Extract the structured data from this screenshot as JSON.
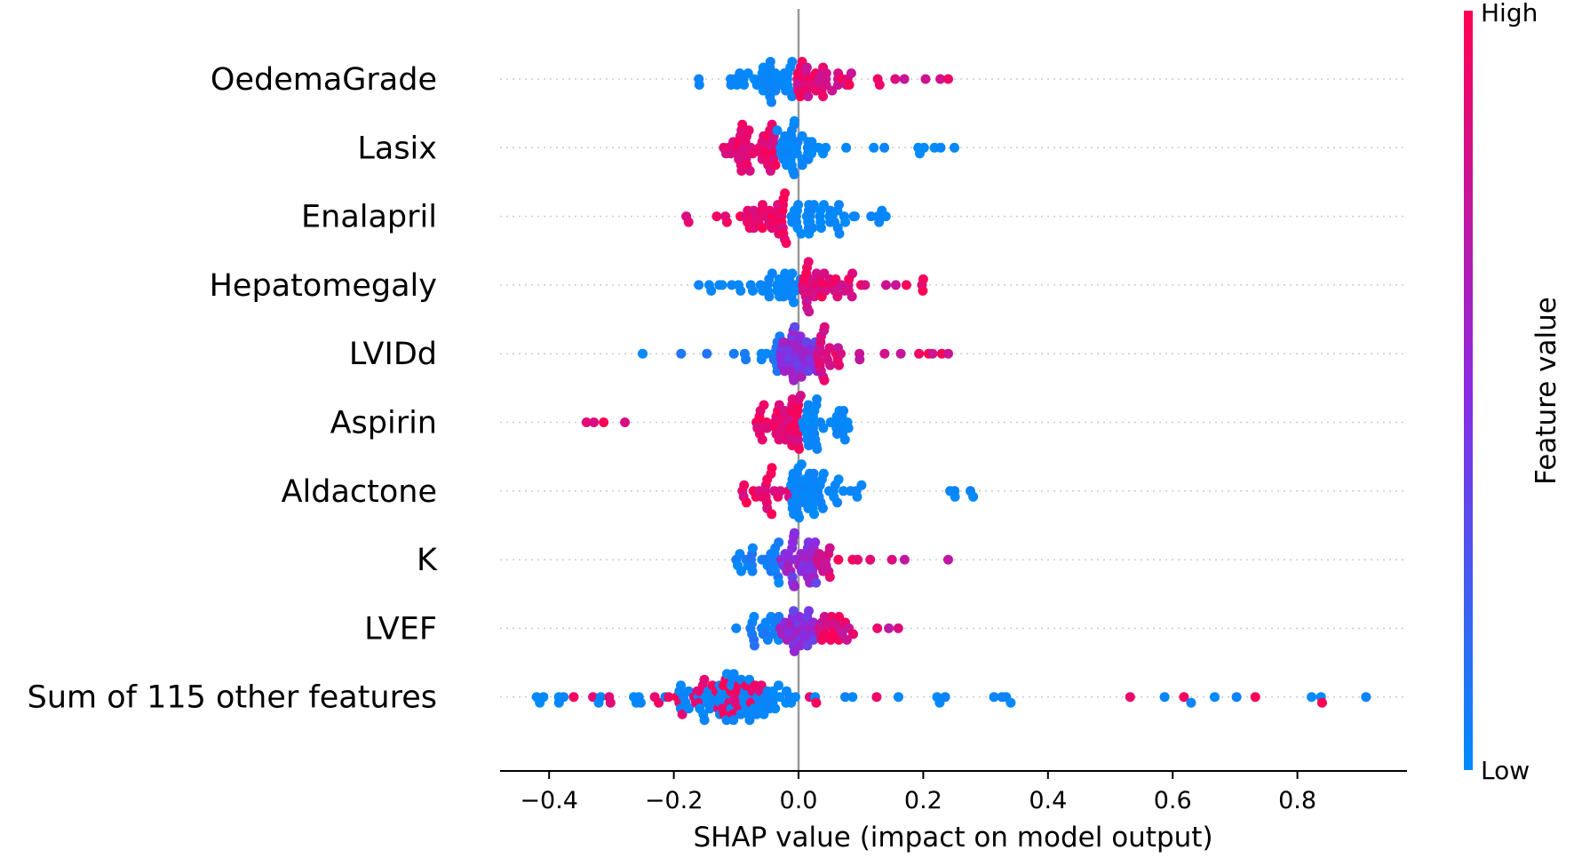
{
  "chart_data": {
    "type": "scatter",
    "subtype": "shap-beeswarm",
    "title": "",
    "xlabel": "SHAP value (impact on model output)",
    "ylabel": "",
    "xlim": [
      -0.48,
      0.97
    ],
    "xticks": [
      -0.4,
      -0.2,
      0.0,
      0.2,
      0.4,
      0.6,
      0.8
    ],
    "xtick_labels": [
      "−0.4",
      "−0.2",
      "0.0",
      "0.2",
      "0.4",
      "0.6",
      "0.8"
    ],
    "grid": false,
    "colorbar": {
      "title": "Feature value",
      "high_label": "High",
      "low_label": "Low",
      "high_color": "#ff0052",
      "mid_color": "#8a2be2",
      "low_color": "#008bfb"
    },
    "features": [
      {
        "name": "OedemaGrade",
        "min": -0.16,
        "max": 0.24,
        "center": -0.01,
        "spread": 0.05,
        "skew": 0.3,
        "core_width": 0.09,
        "density": 70,
        "color_mode": "pos_high"
      },
      {
        "name": "Lasix",
        "min": -0.12,
        "max": 0.25,
        "center": -0.03,
        "spread": 0.05,
        "skew": -0.2,
        "core_width": 0.1,
        "density": 75,
        "color_mode": "neg_high"
      },
      {
        "name": "Enalapril",
        "min": -0.18,
        "max": 0.14,
        "center": -0.01,
        "spread": 0.05,
        "skew": 0.0,
        "core_width": 0.09,
        "density": 70,
        "color_mode": "neg_high"
      },
      {
        "name": "Hepatomegaly",
        "min": -0.16,
        "max": 0.2,
        "center": 0.0,
        "spread": 0.045,
        "skew": 0.2,
        "core_width": 0.08,
        "density": 65,
        "color_mode": "pos_high"
      },
      {
        "name": "LVIDd",
        "min": -0.25,
        "max": 0.24,
        "center": 0.0,
        "spread": 0.04,
        "skew": 0.1,
        "core_width": 0.06,
        "density": 70,
        "color_mode": "mixed_pos"
      },
      {
        "name": "Aspirin",
        "min": -0.34,
        "max": 0.08,
        "center": 0.01,
        "spread": 0.04,
        "skew": -0.5,
        "core_width": 0.05,
        "density": 70,
        "color_mode": "neg_high"
      },
      {
        "name": "Aldactone",
        "min": -0.09,
        "max": 0.28,
        "center": -0.01,
        "spread": 0.04,
        "skew": 0.2,
        "core_width": 0.07,
        "density": 65,
        "color_mode": "neg_high"
      },
      {
        "name": "K",
        "min": -0.1,
        "max": 0.24,
        "center": 0.0,
        "spread": 0.04,
        "skew": 0.25,
        "core_width": 0.06,
        "density": 65,
        "color_mode": "mixed_pos"
      },
      {
        "name": "LVEF",
        "min": -0.1,
        "max": 0.16,
        "center": 0.0,
        "spread": 0.04,
        "skew": 0.1,
        "core_width": 0.06,
        "density": 60,
        "color_mode": "mixed_pos"
      },
      {
        "name": "Sum of 115 other features",
        "min": -0.42,
        "max": 0.91,
        "center": -0.11,
        "spread": 0.06,
        "skew": 0.0,
        "core_width": 0.1,
        "density": 95,
        "color_mode": "scatter_mixed"
      }
    ]
  }
}
